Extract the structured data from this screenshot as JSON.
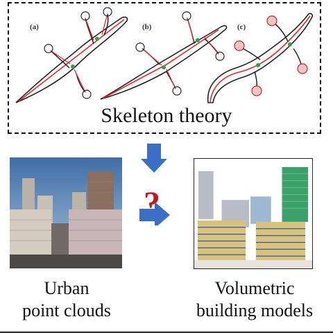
{
  "diagram": {
    "panel_labels": [
      "(a)",
      "(b)",
      "(c)"
    ],
    "title": "Skeleton theory",
    "question_mark": "?",
    "left_caption": [
      "Urban",
      "point clouds"
    ],
    "right_caption": [
      "Volumetric",
      "building models"
    ]
  },
  "colors": {
    "skeleton_line": "#e0262a",
    "junction": "#2ea043",
    "arrow_fill": "#3b6fc6",
    "question": "#c8141c"
  }
}
